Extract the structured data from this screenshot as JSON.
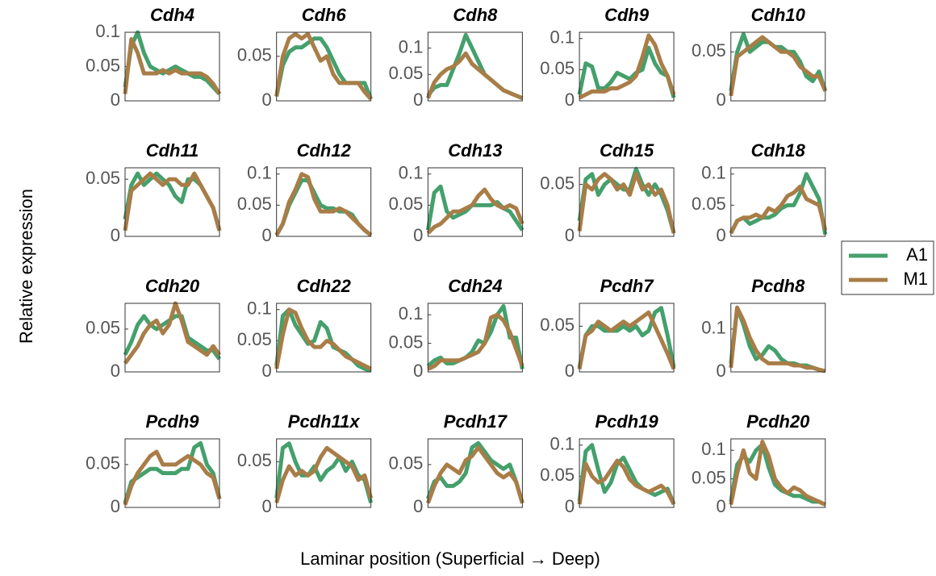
{
  "xlabel": "Laminar position (Superficial → Deep)",
  "ylabel": "Relative expression",
  "legend": {
    "position": "right",
    "entries": [
      {
        "name": "A1",
        "color": "#44a06c"
      },
      {
        "name": "M1",
        "color": "#a97d47"
      }
    ]
  },
  "chart_data": [
    {
      "type": "line",
      "title": "Cdh4",
      "ylim": [
        0,
        0.1
      ],
      "yticks": [
        0,
        0.05,
        0.1
      ],
      "series": [
        {
          "values": [
            0.02,
            0.08,
            0.1,
            0.07,
            0.05,
            0.045,
            0.04,
            0.045,
            0.05,
            0.045,
            0.04,
            0.035,
            0.035,
            0.03,
            0.02,
            0.01
          ]
        },
        {
          "values": [
            0.01,
            0.09,
            0.07,
            0.04,
            0.04,
            0.04,
            0.045,
            0.04,
            0.045,
            0.04,
            0.04,
            0.04,
            0.04,
            0.035,
            0.025,
            0.01
          ]
        }
      ]
    },
    {
      "type": "line",
      "title": "Cdh6",
      "ylim": [
        0,
        0.077
      ],
      "yticks": [
        0,
        0.05
      ],
      "series": [
        {
          "values": [
            0.005,
            0.04,
            0.055,
            0.06,
            0.06,
            0.065,
            0.07,
            0.07,
            0.06,
            0.045,
            0.03,
            0.02,
            0.02,
            0.02,
            0.02,
            0.002
          ]
        },
        {
          "values": [
            0.005,
            0.05,
            0.07,
            0.075,
            0.07,
            0.075,
            0.06,
            0.045,
            0.05,
            0.03,
            0.02,
            0.02,
            0.02,
            0.02,
            0.01,
            0.002
          ]
        }
      ]
    },
    {
      "type": "line",
      "title": "Cdh8",
      "ylim": [
        0,
        0.13
      ],
      "yticks": [
        0,
        0.05,
        0.1
      ],
      "series": [
        {
          "values": [
            0.01,
            0.025,
            0.03,
            0.03,
            0.06,
            0.09,
            0.125,
            0.1,
            0.075,
            0.05,
            0.04,
            0.03,
            0.02,
            0.015,
            0.01,
            0.005
          ]
        },
        {
          "values": [
            0.005,
            0.035,
            0.05,
            0.06,
            0.065,
            0.075,
            0.09,
            0.07,
            0.06,
            0.05,
            0.04,
            0.03,
            0.02,
            0.015,
            0.01,
            0.005
          ]
        }
      ]
    },
    {
      "type": "line",
      "title": "Cdh9",
      "ylim": [
        0,
        0.11
      ],
      "yticks": [
        0,
        0.05,
        0.1
      ],
      "series": [
        {
          "values": [
            0.01,
            0.06,
            0.055,
            0.02,
            0.02,
            0.03,
            0.045,
            0.04,
            0.035,
            0.045,
            0.05,
            0.085,
            0.06,
            0.045,
            0.04,
            0.005
          ]
        },
        {
          "values": [
            0.005,
            0.01,
            0.015,
            0.015,
            0.015,
            0.02,
            0.02,
            0.025,
            0.03,
            0.04,
            0.07,
            0.105,
            0.09,
            0.06,
            0.04,
            0.01
          ]
        }
      ]
    },
    {
      "type": "line",
      "title": "Cdh10",
      "ylim": [
        0,
        0.07
      ],
      "yticks": [
        0,
        0.05
      ],
      "series": [
        {
          "values": [
            0.01,
            0.05,
            0.068,
            0.05,
            0.055,
            0.06,
            0.06,
            0.055,
            0.055,
            0.05,
            0.05,
            0.04,
            0.025,
            0.02,
            0.03,
            0.01
          ]
        },
        {
          "values": [
            0.005,
            0.045,
            0.05,
            0.055,
            0.06,
            0.065,
            0.06,
            0.055,
            0.05,
            0.05,
            0.045,
            0.035,
            0.03,
            0.025,
            0.025,
            0.01
          ]
        }
      ]
    },
    {
      "type": "line",
      "title": "Cdh11",
      "ylim": [
        0,
        0.06
      ],
      "yticks": [
        0,
        0.05
      ],
      "series": [
        {
          "values": [
            0.015,
            0.045,
            0.055,
            0.045,
            0.05,
            0.055,
            0.05,
            0.045,
            0.035,
            0.03,
            0.05,
            0.05,
            0.045,
            0.035,
            0.025,
            0.005
          ]
        },
        {
          "values": [
            0.005,
            0.04,
            0.045,
            0.05,
            0.055,
            0.05,
            0.045,
            0.05,
            0.05,
            0.045,
            0.045,
            0.055,
            0.045,
            0.035,
            0.025,
            0.005
          ]
        }
      ]
    },
    {
      "type": "line",
      "title": "Cdh12",
      "ylim": [
        0,
        0.11
      ],
      "yticks": [
        0,
        0.05,
        0.1
      ],
      "series": [
        {
          "values": [
            0.002,
            0.02,
            0.05,
            0.07,
            0.09,
            0.09,
            0.07,
            0.05,
            0.045,
            0.045,
            0.04,
            0.04,
            0.035,
            0.02,
            0.01,
            0.002
          ]
        },
        {
          "values": [
            0.002,
            0.02,
            0.055,
            0.075,
            0.1,
            0.095,
            0.06,
            0.04,
            0.04,
            0.04,
            0.045,
            0.04,
            0.03,
            0.02,
            0.01,
            0.002
          ]
        }
      ]
    },
    {
      "type": "line",
      "title": "Cdh13",
      "ylim": [
        0,
        0.11
      ],
      "yticks": [
        0,
        0.05,
        0.1
      ],
      "series": [
        {
          "values": [
            0.01,
            0.07,
            0.08,
            0.04,
            0.03,
            0.035,
            0.04,
            0.05,
            0.05,
            0.05,
            0.05,
            0.055,
            0.045,
            0.04,
            0.025,
            0.01
          ]
        },
        {
          "values": [
            0.005,
            0.015,
            0.02,
            0.03,
            0.04,
            0.04,
            0.045,
            0.05,
            0.065,
            0.075,
            0.06,
            0.05,
            0.045,
            0.05,
            0.045,
            0.02
          ]
        }
      ]
    },
    {
      "type": "line",
      "title": "Cdh15",
      "ylim": [
        0,
        0.066
      ],
      "yticks": [
        0,
        0.05
      ],
      "series": [
        {
          "values": [
            0.015,
            0.055,
            0.06,
            0.04,
            0.05,
            0.055,
            0.05,
            0.045,
            0.045,
            0.065,
            0.05,
            0.04,
            0.05,
            0.04,
            0.025,
            0.003
          ]
        },
        {
          "values": [
            0.005,
            0.05,
            0.045,
            0.055,
            0.06,
            0.055,
            0.045,
            0.05,
            0.04,
            0.06,
            0.045,
            0.05,
            0.04,
            0.045,
            0.03,
            0.003
          ]
        }
      ]
    },
    {
      "type": "line",
      "title": "Cdh18",
      "ylim": [
        0,
        0.11
      ],
      "yticks": [
        0,
        0.05,
        0.1
      ],
      "series": [
        {
          "values": [
            0.005,
            0.025,
            0.03,
            0.02,
            0.025,
            0.03,
            0.03,
            0.035,
            0.045,
            0.05,
            0.05,
            0.07,
            0.1,
            0.08,
            0.06,
            0.003
          ]
        },
        {
          "values": [
            0.005,
            0.025,
            0.03,
            0.03,
            0.035,
            0.03,
            0.045,
            0.04,
            0.05,
            0.065,
            0.07,
            0.08,
            0.06,
            0.055,
            0.05,
            0.01
          ]
        }
      ]
    },
    {
      "type": "line",
      "title": "Cdh20",
      "ylim": [
        0,
        0.08
      ],
      "yticks": [
        0,
        0.05
      ],
      "series": [
        {
          "values": [
            0.02,
            0.035,
            0.055,
            0.065,
            0.055,
            0.05,
            0.055,
            0.06,
            0.065,
            0.065,
            0.04,
            0.035,
            0.03,
            0.025,
            0.025,
            0.015
          ]
        },
        {
          "values": [
            0.01,
            0.02,
            0.03,
            0.045,
            0.055,
            0.06,
            0.045,
            0.055,
            0.08,
            0.06,
            0.035,
            0.03,
            0.025,
            0.02,
            0.03,
            0.02
          ]
        }
      ]
    },
    {
      "type": "line",
      "title": "Cdh22",
      "ylim": [
        0,
        0.11
      ],
      "yticks": [
        0,
        0.05,
        0.1
      ],
      "series": [
        {
          "values": [
            0.01,
            0.09,
            0.1,
            0.075,
            0.06,
            0.045,
            0.05,
            0.08,
            0.07,
            0.04,
            0.035,
            0.03,
            0.02,
            0.01,
            0.005,
            0.002
          ]
        },
        {
          "values": [
            0.005,
            0.06,
            0.1,
            0.095,
            0.07,
            0.05,
            0.04,
            0.04,
            0.05,
            0.045,
            0.035,
            0.025,
            0.02,
            0.015,
            0.01,
            0.005
          ]
        }
      ]
    },
    {
      "type": "line",
      "title": "Cdh24",
      "ylim": [
        0,
        0.12
      ],
      "yticks": [
        0,
        0.05,
        0.1
      ],
      "series": [
        {
          "values": [
            0.01,
            0.02,
            0.025,
            0.015,
            0.015,
            0.02,
            0.025,
            0.035,
            0.055,
            0.05,
            0.07,
            0.1,
            0.115,
            0.06,
            0.06,
            0.005
          ]
        },
        {
          "values": [
            0.005,
            0.01,
            0.02,
            0.02,
            0.02,
            0.02,
            0.025,
            0.03,
            0.035,
            0.05,
            0.095,
            0.1,
            0.09,
            0.07,
            0.04,
            0.01
          ]
        }
      ]
    },
    {
      "type": "line",
      "title": "Pcdh7",
      "ylim": [
        0,
        0.075
      ],
      "yticks": [
        0,
        0.05
      ],
      "series": [
        {
          "values": [
            0.005,
            0.04,
            0.05,
            0.05,
            0.045,
            0.045,
            0.045,
            0.05,
            0.045,
            0.05,
            0.04,
            0.045,
            0.065,
            0.07,
            0.04,
            0.005
          ]
        },
        {
          "values": [
            0.003,
            0.04,
            0.045,
            0.055,
            0.05,
            0.045,
            0.05,
            0.055,
            0.05,
            0.055,
            0.06,
            0.065,
            0.05,
            0.035,
            0.02,
            0.003
          ]
        }
      ]
    },
    {
      "type": "line",
      "title": "Pcdh8",
      "ylim": [
        0,
        0.16
      ],
      "yticks": [
        0,
        0.1
      ],
      "series": [
        {
          "values": [
            0.02,
            0.15,
            0.11,
            0.06,
            0.03,
            0.04,
            0.06,
            0.05,
            0.03,
            0.02,
            0.02,
            0.015,
            0.015,
            0.01,
            0.005,
            0.002
          ]
        },
        {
          "values": [
            0.01,
            0.15,
            0.12,
            0.08,
            0.05,
            0.03,
            0.02,
            0.02,
            0.02,
            0.02,
            0.015,
            0.015,
            0.01,
            0.01,
            0.005,
            0.002
          ]
        }
      ]
    },
    {
      "type": "line",
      "title": "Pcdh9",
      "ylim": [
        0,
        0.08
      ],
      "yticks": [
        0,
        0.05
      ],
      "series": [
        {
          "values": [
            0.005,
            0.03,
            0.035,
            0.04,
            0.045,
            0.045,
            0.04,
            0.04,
            0.04,
            0.045,
            0.045,
            0.07,
            0.075,
            0.05,
            0.04,
            0.01
          ]
        },
        {
          "values": [
            0.003,
            0.025,
            0.04,
            0.05,
            0.06,
            0.065,
            0.05,
            0.05,
            0.05,
            0.055,
            0.06,
            0.055,
            0.05,
            0.04,
            0.035,
            0.01
          ]
        }
      ]
    },
    {
      "type": "line",
      "title": "Pcdh11x",
      "ylim": [
        0,
        0.075
      ],
      "yticks": [
        0,
        0.05
      ],
      "series": [
        {
          "values": [
            0.01,
            0.065,
            0.07,
            0.05,
            0.035,
            0.035,
            0.045,
            0.03,
            0.04,
            0.045,
            0.055,
            0.04,
            0.05,
            0.035,
            0.03,
            0.005
          ]
        },
        {
          "values": [
            0.005,
            0.03,
            0.045,
            0.035,
            0.04,
            0.035,
            0.04,
            0.055,
            0.065,
            0.06,
            0.055,
            0.05,
            0.045,
            0.03,
            0.035,
            0.01
          ]
        }
      ]
    },
    {
      "type": "line",
      "title": "Pcdh17",
      "ylim": [
        0,
        0.08
      ],
      "yticks": [
        0,
        0.05
      ],
      "series": [
        {
          "values": [
            0.01,
            0.03,
            0.035,
            0.025,
            0.025,
            0.03,
            0.04,
            0.07,
            0.075,
            0.065,
            0.055,
            0.05,
            0.045,
            0.05,
            0.03,
            0.005
          ]
        },
        {
          "values": [
            0.005,
            0.025,
            0.04,
            0.05,
            0.045,
            0.04,
            0.055,
            0.06,
            0.07,
            0.06,
            0.05,
            0.04,
            0.035,
            0.04,
            0.03,
            0.005
          ]
        }
      ]
    },
    {
      "type": "line",
      "title": "Pcdh19",
      "ylim": [
        0,
        0.11
      ],
      "yticks": [
        0,
        0.05,
        0.1
      ],
      "series": [
        {
          "values": [
            0.01,
            0.09,
            0.1,
            0.06,
            0.025,
            0.04,
            0.07,
            0.08,
            0.06,
            0.04,
            0.03,
            0.025,
            0.02,
            0.025,
            0.03,
            0.005
          ]
        },
        {
          "values": [
            0.005,
            0.07,
            0.05,
            0.04,
            0.045,
            0.06,
            0.075,
            0.065,
            0.045,
            0.035,
            0.03,
            0.025,
            0.03,
            0.035,
            0.025,
            0.005
          ]
        }
      ]
    },
    {
      "type": "line",
      "title": "Pcdh20",
      "ylim": [
        0,
        0.12
      ],
      "yticks": [
        0,
        0.05,
        0.1
      ],
      "series": [
        {
          "values": [
            0.01,
            0.075,
            0.09,
            0.08,
            0.1,
            0.11,
            0.07,
            0.04,
            0.03,
            0.025,
            0.02,
            0.02,
            0.015,
            0.01,
            0.01,
            0.005
          ]
        },
        {
          "values": [
            0.005,
            0.06,
            0.1,
            0.06,
            0.05,
            0.115,
            0.09,
            0.05,
            0.035,
            0.025,
            0.035,
            0.03,
            0.02,
            0.015,
            0.01,
            0.005
          ]
        }
      ]
    }
  ]
}
